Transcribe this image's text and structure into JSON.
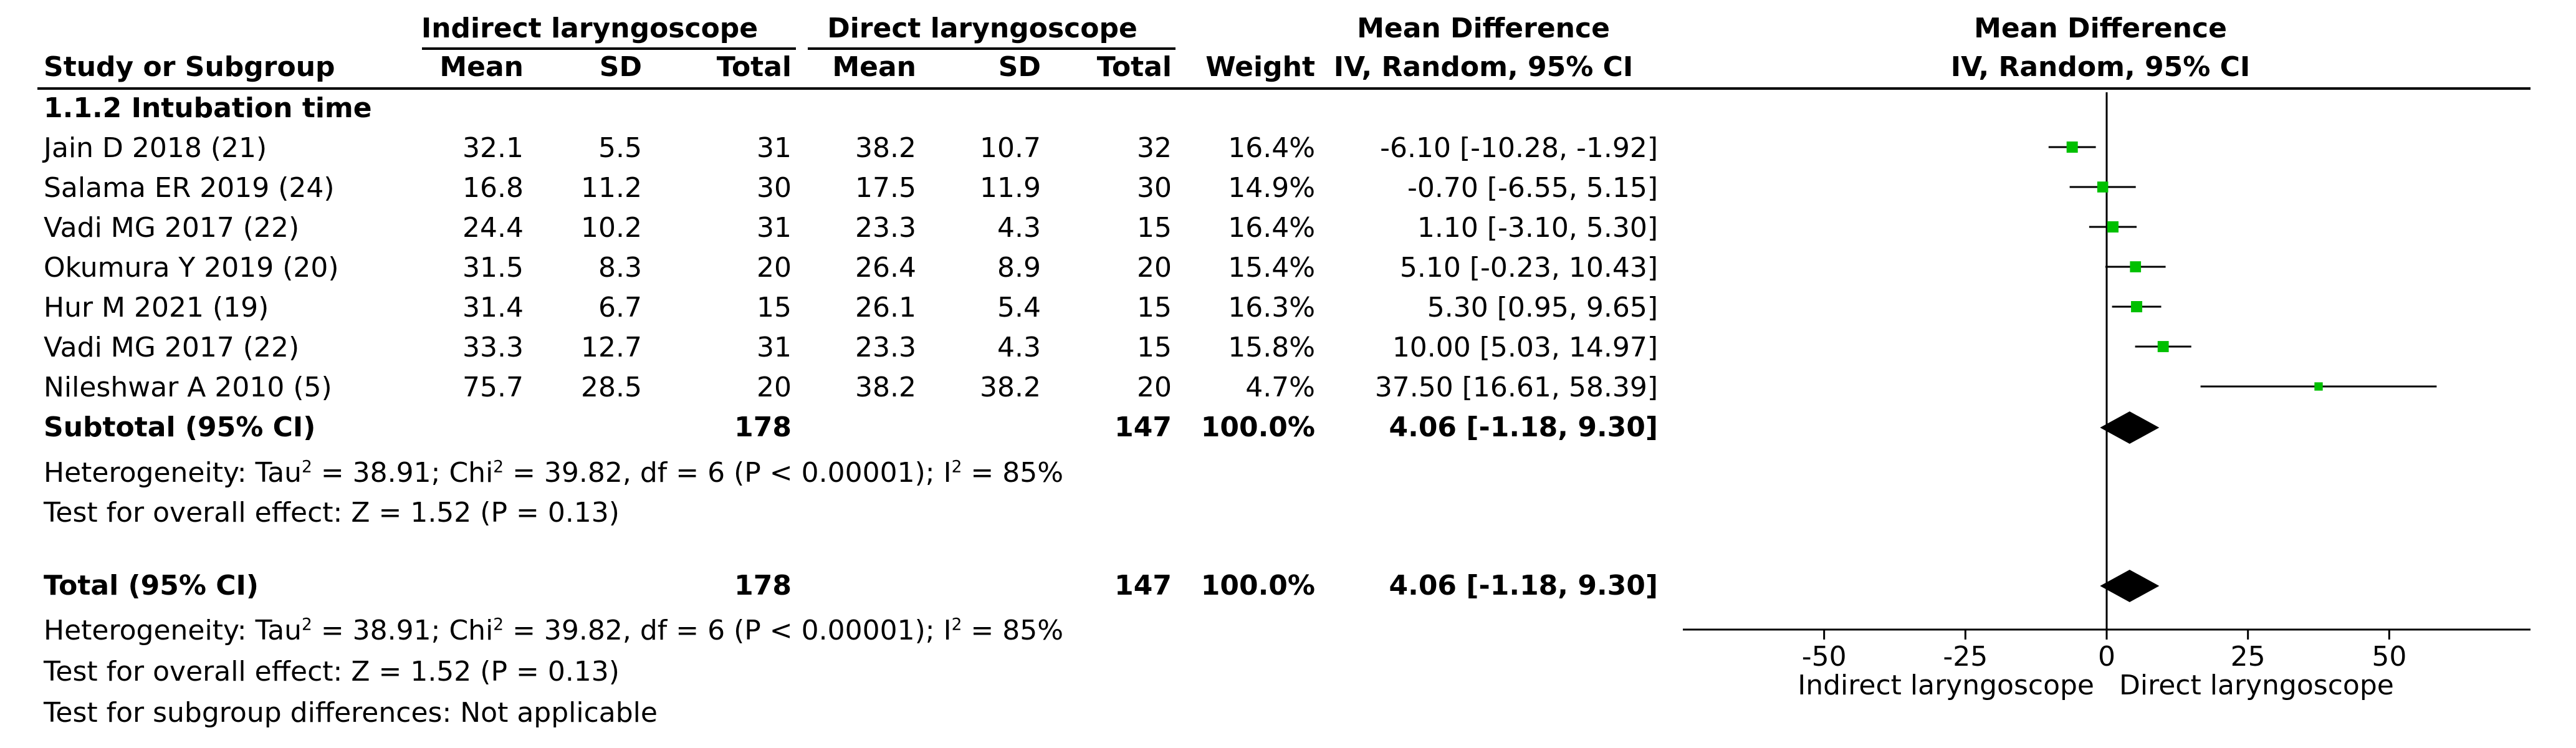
{
  "header": {
    "group_left": "Indirect laryngoscope",
    "group_right": "Direct laryngoscope",
    "md_title": "Mean Difference",
    "md_subtitle": "IV, Random, 95% CI",
    "plot_title": "Mean Difference",
    "plot_subtitle": "IV, Random, 95% CI",
    "study_col": "Study or Subgroup",
    "mean": "Mean",
    "sd": "SD",
    "total": "Total",
    "weight": "Weight"
  },
  "subgroup_title": "1.1.2 Intubation time",
  "rows": [
    {
      "study": "Jain D 2018 (21)",
      "mean1": "32.1",
      "sd1": "5.5",
      "total1": "31",
      "mean2": "38.2",
      "sd2": "10.7",
      "total2": "32",
      "weight": "16.4%",
      "ci": "-6.10 [-10.28, -1.92]"
    },
    {
      "study": "Salama ER 2019 (24)",
      "mean1": "16.8",
      "sd1": "11.2",
      "total1": "30",
      "mean2": "17.5",
      "sd2": "11.9",
      "total2": "30",
      "weight": "14.9%",
      "ci": "-0.70 [-6.55, 5.15]"
    },
    {
      "study": "Vadi MG 2017 (22)",
      "mean1": "24.4",
      "sd1": "10.2",
      "total1": "31",
      "mean2": "23.3",
      "sd2": "4.3",
      "total2": "15",
      "weight": "16.4%",
      "ci": "1.10 [-3.10, 5.30]"
    },
    {
      "study": "Okumura Y 2019 (20)",
      "mean1": "31.5",
      "sd1": "8.3",
      "total1": "20",
      "mean2": "26.4",
      "sd2": "8.9",
      "total2": "20",
      "weight": "15.4%",
      "ci": "5.10 [-0.23, 10.43]"
    },
    {
      "study": "Hur M 2021 (19)",
      "mean1": "31.4",
      "sd1": "6.7",
      "total1": "15",
      "mean2": "26.1",
      "sd2": "5.4",
      "total2": "15",
      "weight": "16.3%",
      "ci": "5.30 [0.95, 9.65]"
    },
    {
      "study": "Vadi MG 2017 (22)",
      "mean1": "33.3",
      "sd1": "12.7",
      "total1": "31",
      "mean2": "23.3",
      "sd2": "4.3",
      "total2": "15",
      "weight": "15.8%",
      "ci": "10.00 [5.03, 14.97]"
    },
    {
      "study": "Nileshwar A 2010 (5)",
      "mean1": "75.7",
      "sd1": "28.5",
      "total1": "20",
      "mean2": "38.2",
      "sd2": "38.2",
      "total2": "20",
      "weight": "4.7%",
      "ci": "37.50 [16.61, 58.39]"
    }
  ],
  "subtotal": {
    "label": "Subtotal (95% CI)",
    "total1": "178",
    "total2": "147",
    "weight": "100.0%",
    "ci": "4.06 [-1.18, 9.30]"
  },
  "subgroup_stats": {
    "het_a": "Heterogeneity: Tau",
    "het_b": " = 38.91; Chi",
    "het_c": " = 39.82, df = 6 (P < 0.00001); I",
    "het_d": " = 85%",
    "sup": "2",
    "overall": "Test for overall effect: Z = 1.52 (P = 0.13)"
  },
  "total": {
    "label": "Total (95% CI)",
    "total1": "178",
    "total2": "147",
    "weight": "100.0%",
    "ci": "4.06 [-1.18, 9.30]"
  },
  "total_stats": {
    "het_a": "Heterogeneity: Tau",
    "het_b": " = 38.91; Chi",
    "het_c": " = 39.82, df = 6 (P < 0.00001); I",
    "het_d": " = 85%",
    "sup": "2",
    "overall": "Test for overall effect: Z = 1.52 (P = 0.13)",
    "subgroup_diff": "Test for subgroup differences: Not applicable"
  },
  "axis": {
    "left_label": "Indirect laryngoscope",
    "right_label": "Direct laryngoscope"
  },
  "colors": {
    "marker": "#00c000",
    "diamond": "#000000"
  },
  "chart_data": {
    "type": "forest",
    "xlim": [
      -75,
      75
    ],
    "ticks": [
      -50,
      -25,
      0,
      25,
      50
    ],
    "tick_labels": [
      "-50",
      "-25",
      "0",
      "25",
      "50"
    ],
    "studies": [
      {
        "name": "Jain D 2018 (21)",
        "md": -6.1,
        "lo": -10.28,
        "hi": -1.92,
        "weight": 16.4
      },
      {
        "name": "Salama ER 2019 (24)",
        "md": -0.7,
        "lo": -6.55,
        "hi": 5.15,
        "weight": 14.9
      },
      {
        "name": "Vadi MG 2017 (22)",
        "md": 1.1,
        "lo": -3.1,
        "hi": 5.3,
        "weight": 16.4
      },
      {
        "name": "Okumura Y 2019 (20)",
        "md": 5.1,
        "lo": -0.23,
        "hi": 10.43,
        "weight": 15.4
      },
      {
        "name": "Hur M 2021 (19)",
        "md": 5.3,
        "lo": 0.95,
        "hi": 9.65,
        "weight": 16.3
      },
      {
        "name": "Vadi MG 2017 (22)",
        "md": 10.0,
        "lo": 5.03,
        "hi": 14.97,
        "weight": 15.8
      },
      {
        "name": "Nileshwar A 2010 (5)",
        "md": 37.5,
        "lo": 16.61,
        "hi": 58.39,
        "weight": 4.7
      }
    ],
    "subtotal": {
      "md": 4.06,
      "lo": -1.18,
      "hi": 9.3
    },
    "total": {
      "md": 4.06,
      "lo": -1.18,
      "hi": 9.3
    }
  }
}
